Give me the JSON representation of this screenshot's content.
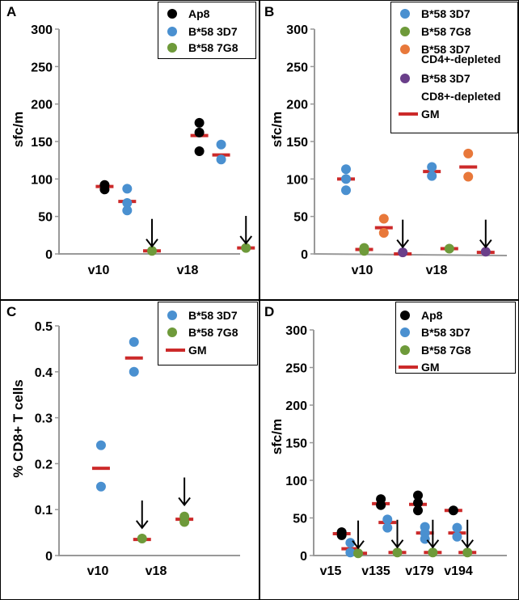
{
  "colors": {
    "ap8": "#000000",
    "b58_3d7": "#4a90d0",
    "b58_7g8": "#6e9a3a",
    "cd4_depleted": "#e8783a",
    "cd8_depleted": "#6a3f8a",
    "gm": "#cc2a2a",
    "arrow": "#000000"
  },
  "chart_data": [
    {
      "panel_label": "A",
      "type": "scatter",
      "ylabel": "sfc/m",
      "ylim": [
        0,
        300
      ],
      "yticks": [
        "0",
        "50",
        "100",
        "150",
        "200",
        "250",
        "300"
      ],
      "ytick_values": [
        0,
        50,
        100,
        150,
        200,
        250,
        300
      ],
      "categories": [
        "v10",
        "v18"
      ],
      "legend": [
        "Ap8",
        "B*58 3D7",
        "B*58 7G8"
      ],
      "points": [
        {
          "series": "Ap8",
          "x": 0.37,
          "y": 92
        },
        {
          "series": "Ap8",
          "x": 0.37,
          "y": 86
        },
        {
          "series": "B*58 3D7",
          "x": 0.67,
          "y": 87
        },
        {
          "series": "B*58 3D7",
          "x": 0.67,
          "y": 68
        },
        {
          "series": "B*58 3D7",
          "x": 0.67,
          "y": 58
        },
        {
          "series": "B*58 7G8",
          "x": 1.0,
          "y": 4
        },
        {
          "series": "Ap8",
          "x": 1.63,
          "y": 175
        },
        {
          "series": "Ap8",
          "x": 1.63,
          "y": 162
        },
        {
          "series": "Ap8",
          "x": 1.63,
          "y": 137
        },
        {
          "series": "B*58 3D7",
          "x": 1.92,
          "y": 146
        },
        {
          "series": "B*58 3D7",
          "x": 1.92,
          "y": 126
        },
        {
          "series": "B*58 7G8",
          "x": 2.25,
          "y": 8
        }
      ],
      "means": [
        {
          "series": "Ap8",
          "x": 0.37,
          "y": 90
        },
        {
          "series": "B*58 3D7",
          "x": 0.67,
          "y": 70
        },
        {
          "series": "B*58 7G8",
          "x": 1.0,
          "y": 4
        },
        {
          "series": "Ap8",
          "x": 1.63,
          "y": 158
        },
        {
          "series": "B*58 3D7",
          "x": 1.92,
          "y": 132
        },
        {
          "series": "B*58 7G8",
          "x": 2.25,
          "y": 8
        }
      ],
      "arrows": [
        {
          "x": 1.0,
          "y": 10
        },
        {
          "x": 2.25,
          "y": 14
        }
      ]
    },
    {
      "panel_label": "B",
      "type": "scatter",
      "ylabel": "sfc/m",
      "ylim": [
        0,
        300
      ],
      "yticks": [
        "0",
        "50",
        "100",
        "150",
        "200",
        "250",
        "300"
      ],
      "ytick_values": [
        0,
        50,
        100,
        150,
        200,
        250,
        300
      ],
      "categories": [
        "v10",
        "v18"
      ],
      "legend": [
        "B*58 3D7",
        "B*58 7G8",
        "B*58 3D7 CD4+-depleted",
        "B*58 3D7 CD8+-depleted",
        "GM"
      ],
      "points": [
        {
          "series": "B*58 3D7",
          "x": 0.3,
          "y": 113
        },
        {
          "series": "B*58 3D7",
          "x": 0.3,
          "y": 100
        },
        {
          "series": "B*58 3D7",
          "x": 0.3,
          "y": 85
        },
        {
          "series": "B*58 7G8",
          "x": 0.55,
          "y": 8
        },
        {
          "series": "B*58 7G8",
          "x": 0.55,
          "y": 4
        },
        {
          "series": "B*58 3D7 CD4+-depleted",
          "x": 0.82,
          "y": 47
        },
        {
          "series": "B*58 3D7 CD4+-depleted",
          "x": 0.82,
          "y": 28
        },
        {
          "series": "B*58 3D7 CD8+-depleted",
          "x": 1.08,
          "y": 2
        },
        {
          "series": "B*58 3D7",
          "x": 1.48,
          "y": 116
        },
        {
          "series": "B*58 3D7",
          "x": 1.48,
          "y": 104
        },
        {
          "series": "B*58 7G8",
          "x": 1.72,
          "y": 7
        },
        {
          "series": "B*58 3D7 CD4+-depleted",
          "x": 1.98,
          "y": 134
        },
        {
          "series": "B*58 3D7 CD4+-depleted",
          "x": 1.98,
          "y": 103
        },
        {
          "series": "B*58 3D7 CD8+-depleted",
          "x": 2.22,
          "y": 3
        }
      ],
      "means": [
        {
          "series": "B*58 3D7",
          "x": 0.3,
          "y": 100
        },
        {
          "series": "B*58 7G8",
          "x": 0.55,
          "y": 6
        },
        {
          "series": "B*58 3D7 CD4+-depleted",
          "x": 0.82,
          "y": 35
        },
        {
          "series": "B*58 3D7 CD8+-depleted",
          "x": 1.08,
          "y": 0
        },
        {
          "series": "B*58 3D7",
          "x": 1.48,
          "y": 110
        },
        {
          "series": "B*58 7G8",
          "x": 1.72,
          "y": 7
        },
        {
          "series": "B*58 3D7 CD4+-depleted",
          "x": 1.98,
          "y": 116
        },
        {
          "series": "B*58 3D7 CD8+-depleted",
          "x": 2.22,
          "y": 2
        }
      ],
      "arrows": [
        {
          "x": 1.08,
          "y": 9
        },
        {
          "x": 2.22,
          "y": 9
        }
      ]
    },
    {
      "panel_label": "C",
      "type": "scatter",
      "ylabel": "% CD8+ T cells",
      "ylim": [
        0,
        0.5
      ],
      "yticks": [
        "0",
        "0.1",
        "0.2",
        "0.3",
        "0.4",
        "0.5"
      ],
      "ytick_values": [
        0,
        0.1,
        0.2,
        0.3,
        0.4,
        0.5
      ],
      "categories": [
        "v10",
        "v18"
      ],
      "legend": [
        "B*58 3D7",
        "B*58 7G8",
        "GM"
      ],
      "points": [
        {
          "series": "B*58 3D7",
          "x": 0.22,
          "y": 0.24
        },
        {
          "series": "B*58 3D7",
          "x": 0.22,
          "y": 0.15
        },
        {
          "series": "B*58 3D7",
          "x": 0.75,
          "y": 0.465
        },
        {
          "series": "B*58 3D7",
          "x": 0.75,
          "y": 0.4
        },
        {
          "series": "B*58 7G8",
          "x": 0.88,
          "y": 0.037
        },
        {
          "series": "B*58 7G8",
          "x": 1.56,
          "y": 0.085
        },
        {
          "series": "B*58 7G8",
          "x": 1.56,
          "y": 0.073
        }
      ],
      "means": [
        {
          "series": "B*58 3D7",
          "x": 0.22,
          "y": 0.19
        },
        {
          "series": "B*58 3D7",
          "x": 0.75,
          "y": 0.43
        },
        {
          "series": "B*58 7G8",
          "x": 0.88,
          "y": 0.035
        },
        {
          "series": "B*58 7G8",
          "x": 1.56,
          "y": 0.079
        }
      ],
      "arrows": [
        {
          "x": 0.88,
          "y": 0.06
        },
        {
          "x": 1.56,
          "y": 0.11
        }
      ]
    },
    {
      "panel_label": "D",
      "type": "scatter",
      "ylabel": "sfc/m",
      "ylim": [
        0,
        300
      ],
      "yticks": [
        "0",
        "50",
        "100",
        "150",
        "200",
        "250",
        "300"
      ],
      "ytick_values": [
        0,
        50,
        100,
        150,
        200,
        250,
        300
      ],
      "categories": [
        "v15",
        "v135",
        "v179",
        "v194"
      ],
      "legend": [
        "Ap8",
        "B*58 3D7",
        "B*58 7G8",
        "GM"
      ],
      "points": [
        {
          "series": "Ap8",
          "x": 0.15,
          "y": 31
        },
        {
          "series": "Ap8",
          "x": 0.15,
          "y": 27
        },
        {
          "series": "B*58 3D7",
          "x": 0.36,
          "y": 17
        },
        {
          "series": "B*58 3D7",
          "x": 0.36,
          "y": 4
        },
        {
          "series": "B*58 7G8",
          "x": 0.55,
          "y": 3
        },
        {
          "series": "Ap8",
          "x": 1.1,
          "y": 75
        },
        {
          "series": "Ap8",
          "x": 1.1,
          "y": 67
        },
        {
          "series": "B*58 3D7",
          "x": 1.26,
          "y": 48
        },
        {
          "series": "B*58 3D7",
          "x": 1.26,
          "y": 37
        },
        {
          "series": "B*58 7G8",
          "x": 1.5,
          "y": 4
        },
        {
          "series": "Ap8",
          "x": 2.0,
          "y": 80
        },
        {
          "series": "Ap8",
          "x": 2.0,
          "y": 70
        },
        {
          "series": "Ap8",
          "x": 2.0,
          "y": 60
        },
        {
          "series": "B*58 3D7",
          "x": 2.17,
          "y": 38
        },
        {
          "series": "B*58 3D7",
          "x": 2.17,
          "y": 30
        },
        {
          "series": "B*58 3D7",
          "x": 2.17,
          "y": 22
        },
        {
          "series": "B*58 7G8",
          "x": 2.36,
          "y": 4
        },
        {
          "series": "Ap8",
          "x": 2.86,
          "y": 60
        },
        {
          "series": "B*58 3D7",
          "x": 2.95,
          "y": 37
        },
        {
          "series": "B*58 3D7",
          "x": 2.95,
          "y": 25
        },
        {
          "series": "B*58 7G8",
          "x": 3.2,
          "y": 4
        }
      ],
      "means": [
        {
          "series": "Ap8",
          "x": 0.15,
          "y": 29
        },
        {
          "series": "B*58 3D7",
          "x": 0.36,
          "y": 9
        },
        {
          "series": "B*58 7G8",
          "x": 0.55,
          "y": 3
        },
        {
          "series": "Ap8",
          "x": 1.1,
          "y": 69
        },
        {
          "series": "B*58 3D7",
          "x": 1.26,
          "y": 44
        },
        {
          "series": "B*58 7G8",
          "x": 1.5,
          "y": 4
        },
        {
          "series": "Ap8",
          "x": 2.0,
          "y": 68
        },
        {
          "series": "B*58 3D7",
          "x": 2.17,
          "y": 30
        },
        {
          "series": "B*58 7G8",
          "x": 2.36,
          "y": 4
        },
        {
          "series": "Ap8",
          "x": 2.86,
          "y": 60
        },
        {
          "series": "B*58 3D7",
          "x": 2.95,
          "y": 30
        },
        {
          "series": "B*58 7G8",
          "x": 3.2,
          "y": 4
        }
      ],
      "arrows": [
        {
          "x": 0.55,
          "y": 10
        },
        {
          "x": 1.5,
          "y": 11
        },
        {
          "x": 2.36,
          "y": 11
        },
        {
          "x": 3.2,
          "y": 11
        }
      ]
    }
  ]
}
